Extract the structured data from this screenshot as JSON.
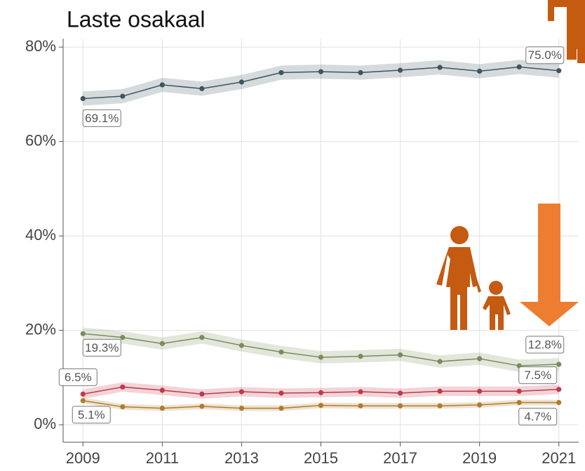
{
  "chart_data": {
    "type": "line",
    "title": "Laste osakaal",
    "x": [
      2009,
      2010,
      2011,
      2012,
      2013,
      2014,
      2015,
      2016,
      2017,
      2018,
      2019,
      2020,
      2021
    ],
    "xlim": [
      2008.5,
      2021.5
    ],
    "xticks": [
      2009,
      2011,
      2013,
      2015,
      2017,
      2019,
      2021
    ],
    "ylim": [
      -3.7,
      81.8
    ],
    "yticks": [
      {
        "value": 0,
        "label": "0%"
      },
      {
        "value": 20,
        "label": "20%"
      },
      {
        "value": 40,
        "label": "40%"
      },
      {
        "value": 60,
        "label": "60%"
      },
      {
        "value": 80,
        "label": "80%"
      }
    ],
    "grid": true,
    "series": [
      {
        "color": "#3f5560",
        "ci": 1.5,
        "values": [
          69.1,
          69.6,
          72.0,
          71.2,
          72.6,
          74.6,
          74.8,
          74.6,
          75.1,
          75.7,
          74.9,
          75.8,
          75.0
        ],
        "value_labels": [
          "69.1%",
          null,
          null,
          null,
          null,
          null,
          null,
          null,
          null,
          null,
          null,
          null,
          "75.0%"
        ]
      },
      {
        "color": "#7a8c5a",
        "ci": 1.3,
        "values": [
          19.3,
          18.5,
          17.2,
          18.5,
          16.8,
          15.4,
          14.3,
          14.5,
          14.8,
          13.4,
          14.0,
          12.5,
          12.8
        ],
        "value_labels": [
          "19.3%",
          null,
          null,
          null,
          null,
          null,
          null,
          null,
          null,
          null,
          null,
          null,
          "12.8%"
        ]
      },
      {
        "color": "#c0394b",
        "ci": 1.0,
        "values": [
          6.5,
          8.0,
          7.3,
          6.5,
          7.0,
          6.7,
          6.8,
          7.0,
          6.7,
          7.1,
          7.1,
          7.1,
          7.5
        ],
        "value_labels": [
          "6.5%",
          null,
          null,
          null,
          null,
          null,
          null,
          null,
          null,
          null,
          null,
          null,
          "7.5%"
        ]
      },
      {
        "color": "#b07c2a",
        "ci": 0.6,
        "values": [
          5.1,
          3.8,
          3.5,
          3.9,
          3.5,
          3.5,
          4.1,
          4.0,
          4.0,
          4.0,
          4.2,
          4.7,
          4.7
        ],
        "value_labels": [
          "5.1%",
          null,
          null,
          null,
          null,
          null,
          null,
          null,
          null,
          null,
          null,
          null,
          "4.7%"
        ]
      }
    ]
  }
}
